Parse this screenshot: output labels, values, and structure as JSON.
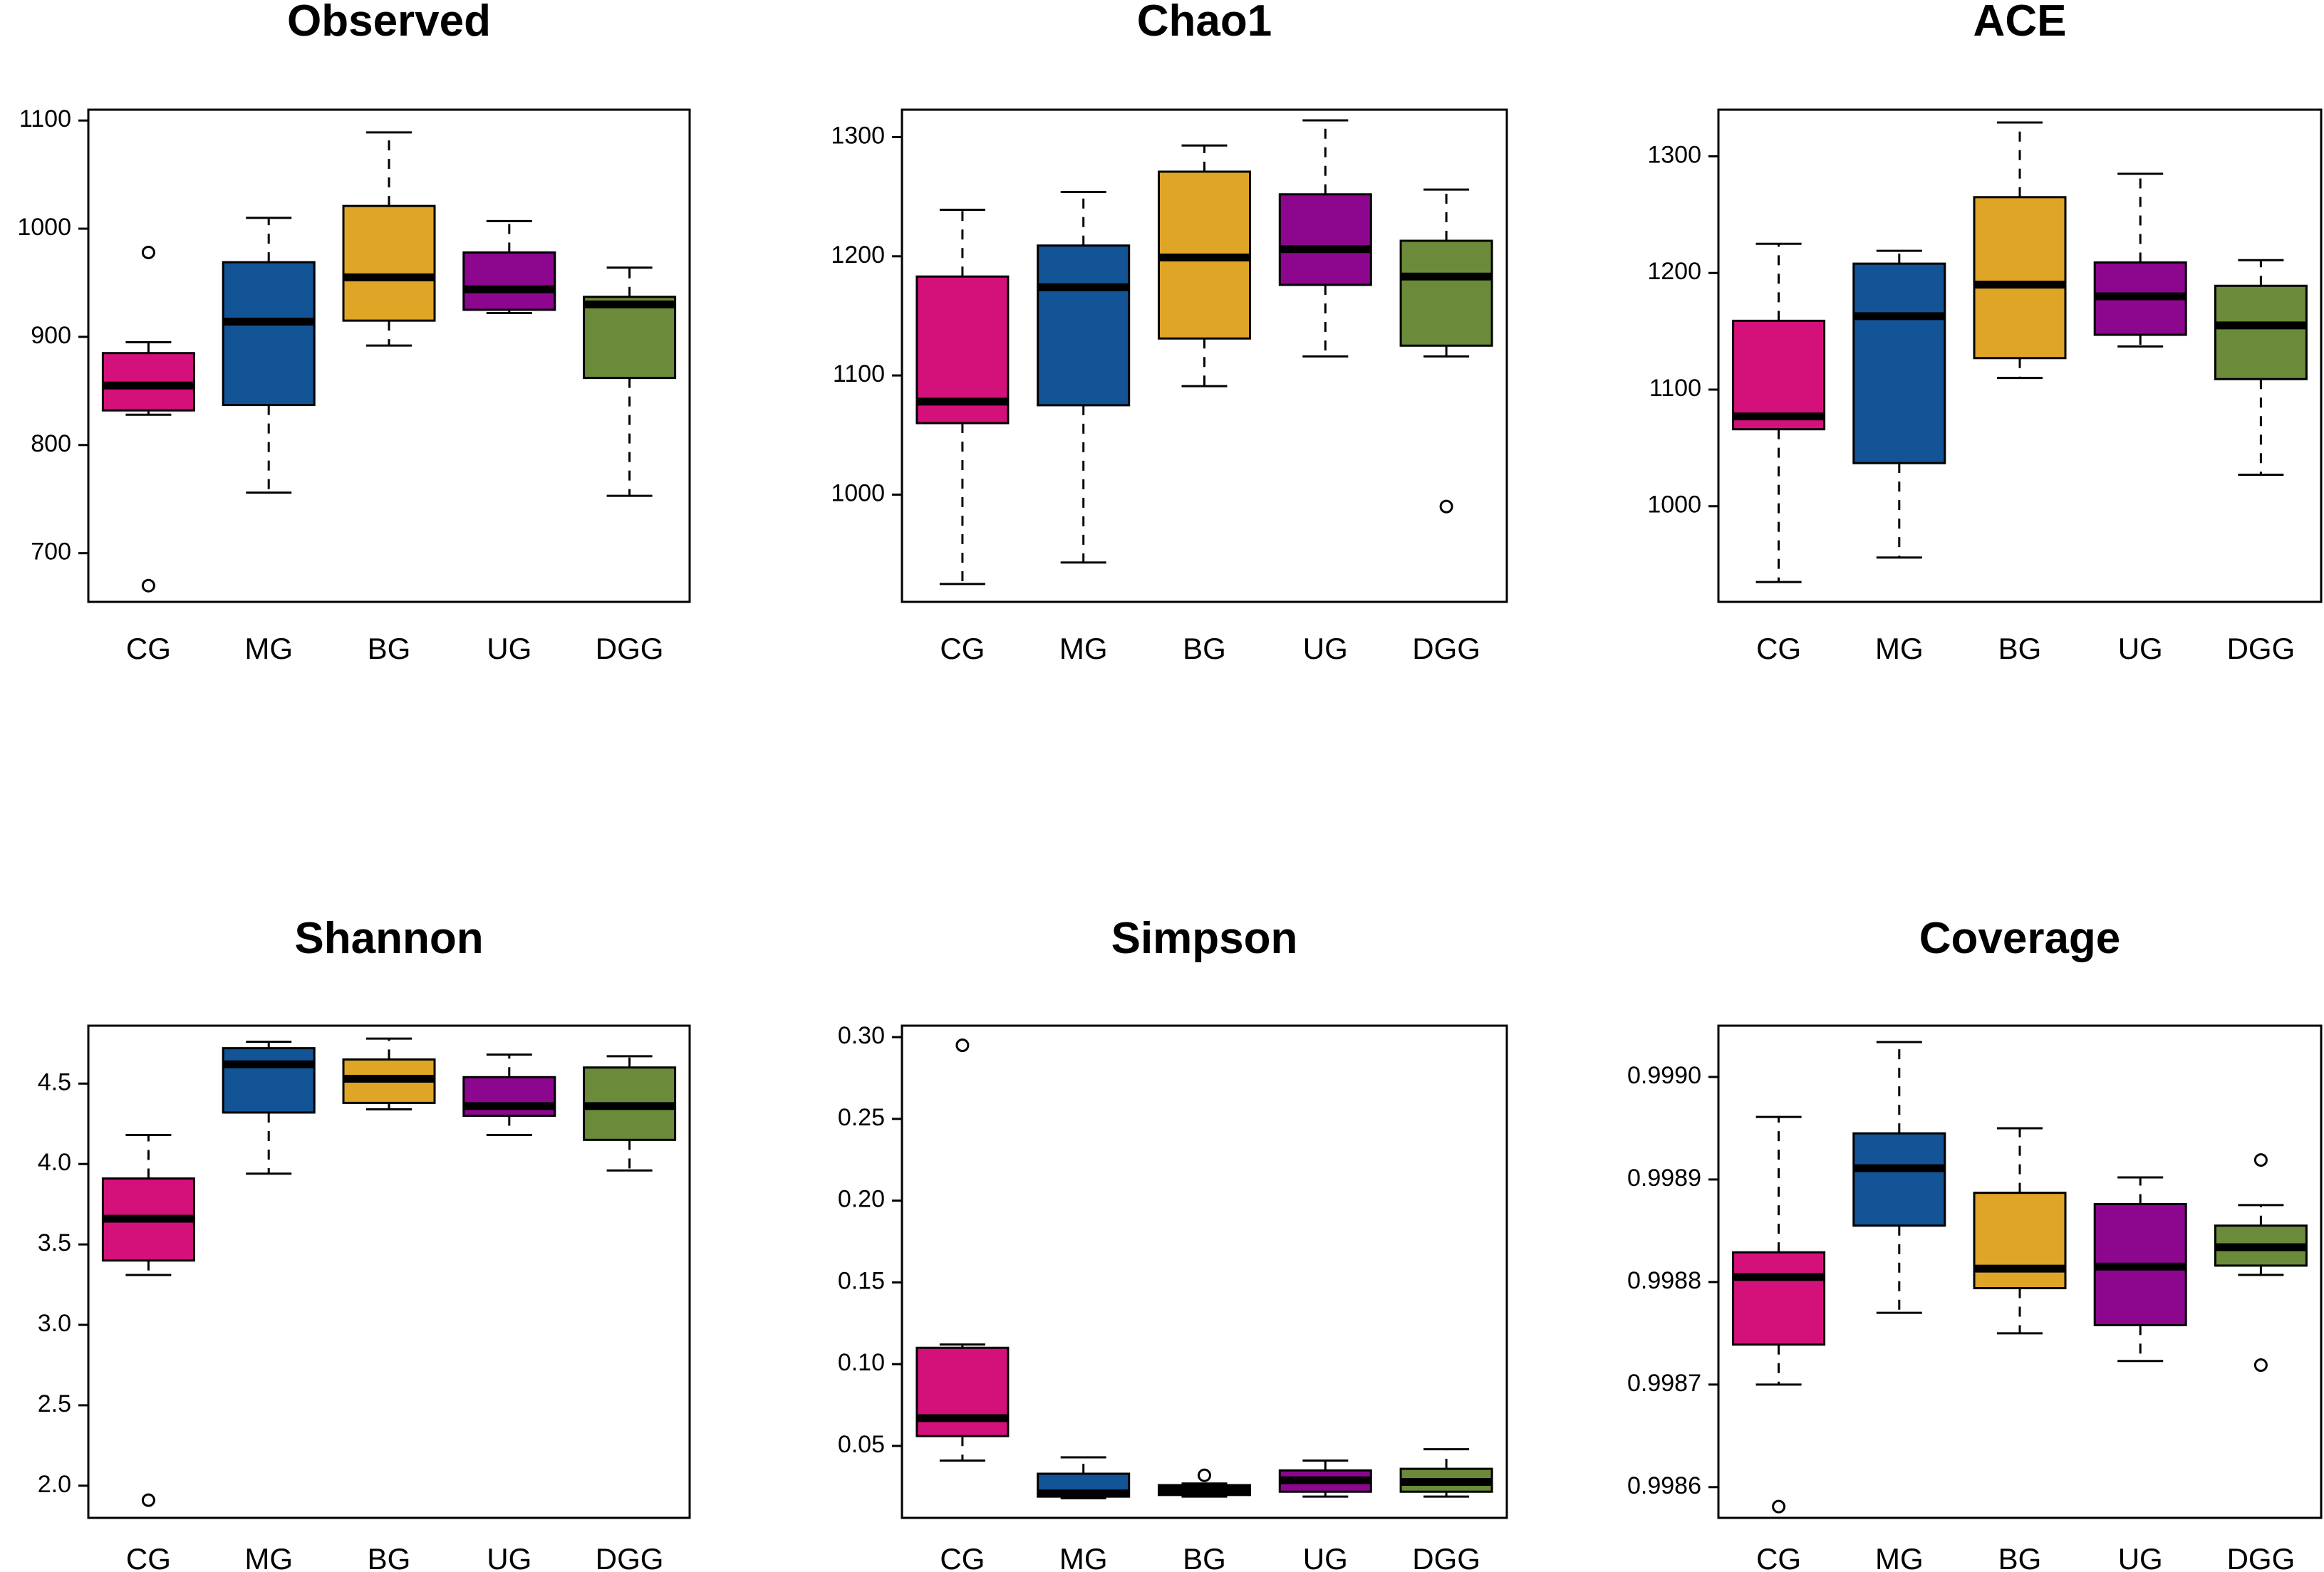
{
  "colors": {
    "CG": "#D4117A",
    "MG": "#125496",
    "BG": "#DEA526",
    "UG": "#8C078E",
    "DGG": "#6B8B3A"
  },
  "chart_data": [
    {
      "type": "box",
      "title": "Observed",
      "categories": [
        "CG",
        "MG",
        "BG",
        "UG",
        "DGG"
      ],
      "yticks": [
        700,
        800,
        900,
        1000,
        1100
      ],
      "ytick_labels": [
        "700",
        "800",
        "900",
        "1000",
        "1100"
      ],
      "ylim": [
        655,
        1110
      ],
      "boxes": [
        {
          "min": 828,
          "q1": 832,
          "median": 855,
          "q3": 885,
          "max": 895,
          "outliers": [
            978,
            670
          ]
        },
        {
          "min": 756,
          "q1": 837,
          "median": 914,
          "q3": 969,
          "max": 1010,
          "outliers": []
        },
        {
          "min": 892,
          "q1": 915,
          "median": 955,
          "q3": 1021,
          "max": 1089,
          "outliers": []
        },
        {
          "min": 922,
          "q1": 925,
          "median": 944,
          "q3": 978,
          "max": 1007,
          "outliers": []
        },
        {
          "min": 753,
          "q1": 862,
          "median": 930,
          "q3": 937,
          "max": 964,
          "outliers": []
        }
      ]
    },
    {
      "type": "box",
      "title": "Chao1",
      "categories": [
        "CG",
        "MG",
        "BG",
        "UG",
        "DGG"
      ],
      "yticks": [
        1000,
        1100,
        1200,
        1300
      ],
      "ytick_labels": [
        "1000",
        "1100",
        "1200",
        "1300"
      ],
      "ylim": [
        910,
        1323
      ],
      "boxes": [
        {
          "min": 925,
          "q1": 1060,
          "median": 1078,
          "q3": 1183,
          "max": 1239,
          "outliers": []
        },
        {
          "min": 943,
          "q1": 1075,
          "median": 1174,
          "q3": 1209,
          "max": 1254,
          "outliers": []
        },
        {
          "min": 1091,
          "q1": 1131,
          "median": 1199,
          "q3": 1271,
          "max": 1293,
          "outliers": []
        },
        {
          "min": 1116,
          "q1": 1176,
          "median": 1206,
          "q3": 1252,
          "max": 1314,
          "outliers": []
        },
        {
          "min": 1116,
          "q1": 1125,
          "median": 1183,
          "q3": 1213,
          "max": 1256,
          "outliers": [
            990
          ]
        }
      ]
    },
    {
      "type": "box",
      "title": "ACE",
      "categories": [
        "CG",
        "MG",
        "BG",
        "UG",
        "DGG"
      ],
      "yticks": [
        1000,
        1100,
        1200,
        1300
      ],
      "ytick_labels": [
        "1000",
        "1100",
        "1200",
        "1300"
      ],
      "ylim": [
        918,
        1340
      ],
      "boxes": [
        {
          "min": 935,
          "q1": 1066,
          "median": 1077,
          "q3": 1159,
          "max": 1225,
          "outliers": []
        },
        {
          "min": 956,
          "q1": 1037,
          "median": 1163,
          "q3": 1208,
          "max": 1219,
          "outliers": []
        },
        {
          "min": 1110,
          "q1": 1127,
          "median": 1190,
          "q3": 1265,
          "max": 1329,
          "outliers": []
        },
        {
          "min": 1137,
          "q1": 1147,
          "median": 1180,
          "q3": 1209,
          "max": 1285,
          "outliers": []
        },
        {
          "min": 1027,
          "q1": 1109,
          "median": 1155,
          "q3": 1189,
          "max": 1211,
          "outliers": []
        }
      ]
    },
    {
      "type": "box",
      "title": "Shannon",
      "categories": [
        "CG",
        "MG",
        "BG",
        "UG",
        "DGG"
      ],
      "yticks": [
        2.0,
        2.5,
        3.0,
        3.5,
        4.0,
        4.5
      ],
      "ytick_labels": [
        "2.0",
        "2.5",
        "3.0",
        "3.5",
        "4.0",
        "4.5"
      ],
      "ylim": [
        1.8,
        4.86
      ],
      "boxes": [
        {
          "min": 3.31,
          "q1": 3.4,
          "median": 3.66,
          "q3": 3.91,
          "max": 4.18,
          "outliers": [
            1.91
          ]
        },
        {
          "min": 3.94,
          "q1": 4.32,
          "median": 4.62,
          "q3": 4.72,
          "max": 4.76,
          "outliers": []
        },
        {
          "min": 4.34,
          "q1": 4.38,
          "median": 4.53,
          "q3": 4.65,
          "max": 4.78,
          "outliers": []
        },
        {
          "min": 4.18,
          "q1": 4.3,
          "median": 4.36,
          "q3": 4.54,
          "max": 4.68,
          "outliers": []
        },
        {
          "min": 3.96,
          "q1": 4.15,
          "median": 4.36,
          "q3": 4.6,
          "max": 4.67,
          "outliers": []
        }
      ]
    },
    {
      "type": "box",
      "title": "Simpson",
      "categories": [
        "CG",
        "MG",
        "BG",
        "UG",
        "DGG"
      ],
      "yticks": [
        0.05,
        0.1,
        0.15,
        0.2,
        0.25,
        0.3
      ],
      "ytick_labels": [
        "0.05",
        "0.10",
        "0.15",
        "0.20",
        "0.25",
        "0.30"
      ],
      "ylim": [
        0.006,
        0.307
      ],
      "boxes": [
        {
          "min": 0.041,
          "q1": 0.056,
          "median": 0.067,
          "q3": 0.11,
          "max": 0.112,
          "outliers": [
            0.295
          ]
        },
        {
          "min": 0.018,
          "q1": 0.019,
          "median": 0.021,
          "q3": 0.033,
          "max": 0.043,
          "outliers": []
        },
        {
          "min": 0.019,
          "q1": 0.02,
          "median": 0.023,
          "q3": 0.026,
          "max": 0.027,
          "outliers": [
            0.032
          ]
        },
        {
          "min": 0.019,
          "q1": 0.022,
          "median": 0.029,
          "q3": 0.035,
          "max": 0.041,
          "outliers": []
        },
        {
          "min": 0.019,
          "q1": 0.022,
          "median": 0.028,
          "q3": 0.036,
          "max": 0.048,
          "outliers": []
        }
      ]
    },
    {
      "type": "box",
      "title": "Coverage",
      "categories": [
        "CG",
        "MG",
        "BG",
        "UG",
        "DGG"
      ],
      "yticks": [
        0.9986,
        0.9987,
        0.9988,
        0.9989,
        0.999
      ],
      "ytick_labels": [
        "0.9986",
        "0.9987",
        "0.9988",
        "0.9989",
        "0.9990"
      ],
      "ylim": [
        0.99857,
        0.99905
      ],
      "boxes": [
        {
          "min": 0.9987,
          "q1": 0.998739,
          "median": 0.998805,
          "q3": 0.998829,
          "max": 0.998961,
          "outliers": [
            0.998581
          ]
        },
        {
          "min": 0.99877,
          "q1": 0.998855,
          "median": 0.998911,
          "q3": 0.998945,
          "max": 0.999034,
          "outliers": []
        },
        {
          "min": 0.99875,
          "q1": 0.998794,
          "median": 0.998813,
          "q3": 0.998887,
          "max": 0.99895,
          "outliers": []
        },
        {
          "min": 0.998723,
          "q1": 0.998758,
          "median": 0.998815,
          "q3": 0.998876,
          "max": 0.998902,
          "outliers": []
        },
        {
          "min": 0.998807,
          "q1": 0.998816,
          "median": 0.998834,
          "q3": 0.998855,
          "max": 0.998875,
          "outliers": [
            0.998919,
            0.998719
          ]
        }
      ]
    }
  ]
}
